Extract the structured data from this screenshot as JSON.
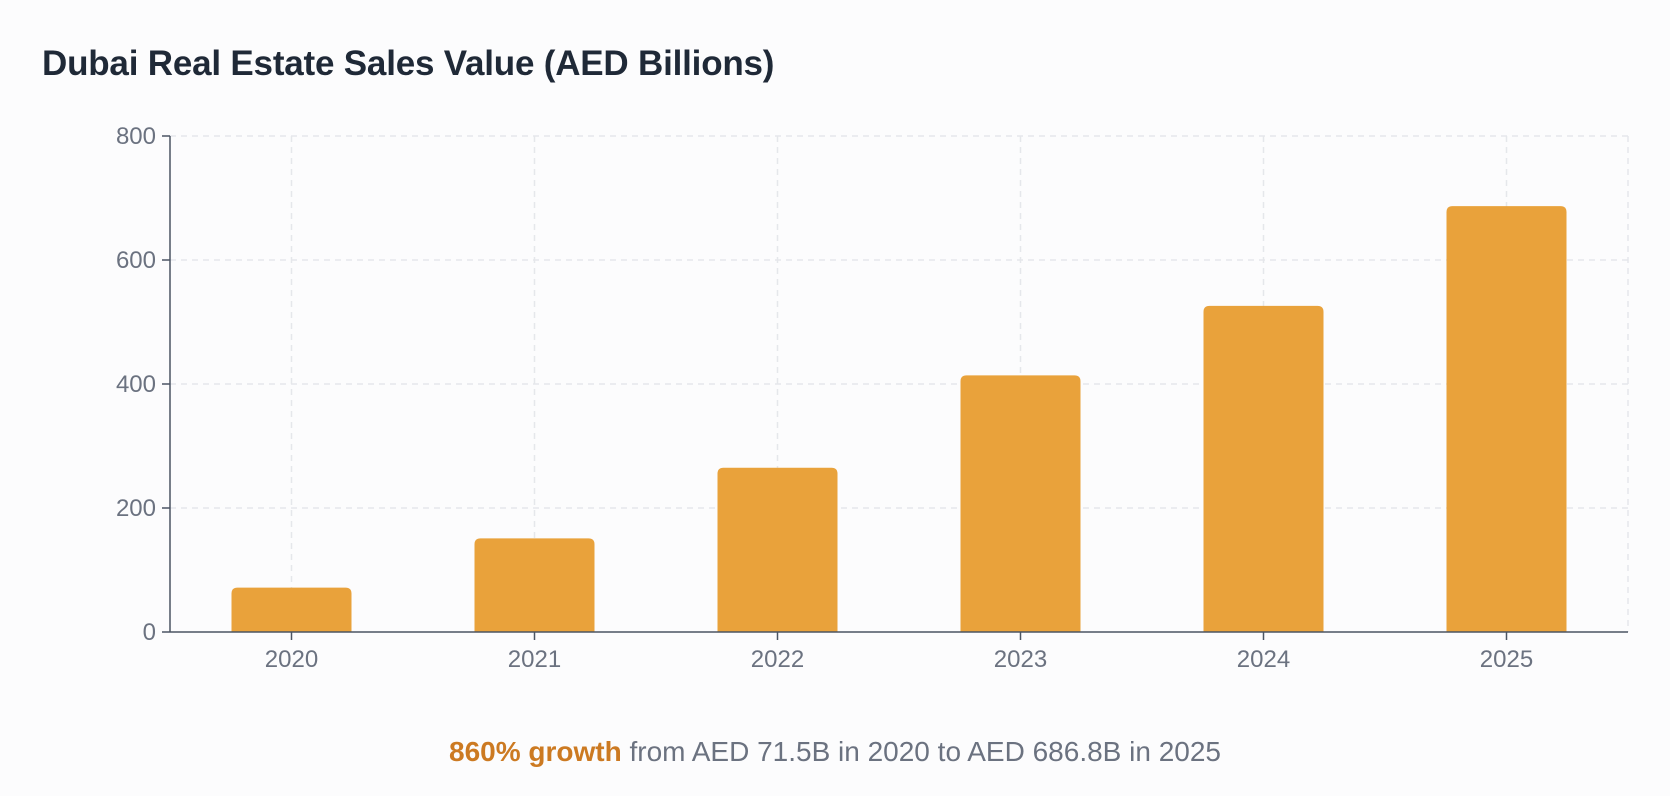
{
  "chart_data": {
    "type": "bar",
    "title": "Dubai Real Estate Sales Value (AED Billions)",
    "xlabel": "",
    "ylabel": "",
    "categories": [
      "2020",
      "2021",
      "2022",
      "2023",
      "2024",
      "2025"
    ],
    "values": [
      71.5,
      151,
      265,
      414,
      526,
      686.8
    ],
    "ylim": [
      0,
      800
    ],
    "yticks": [
      "0",
      "200",
      "400",
      "600",
      "800"
    ],
    "grid": true,
    "bar_color": "#e9a23b",
    "grid_color": "#e5e7eb",
    "axis_color": "#4b5563"
  },
  "caption": {
    "highlight": "860% growth",
    "text": " from AED 71.5B in 2020 to AED 686.8B in 2025",
    "highlight_color": "#cc7a22"
  }
}
